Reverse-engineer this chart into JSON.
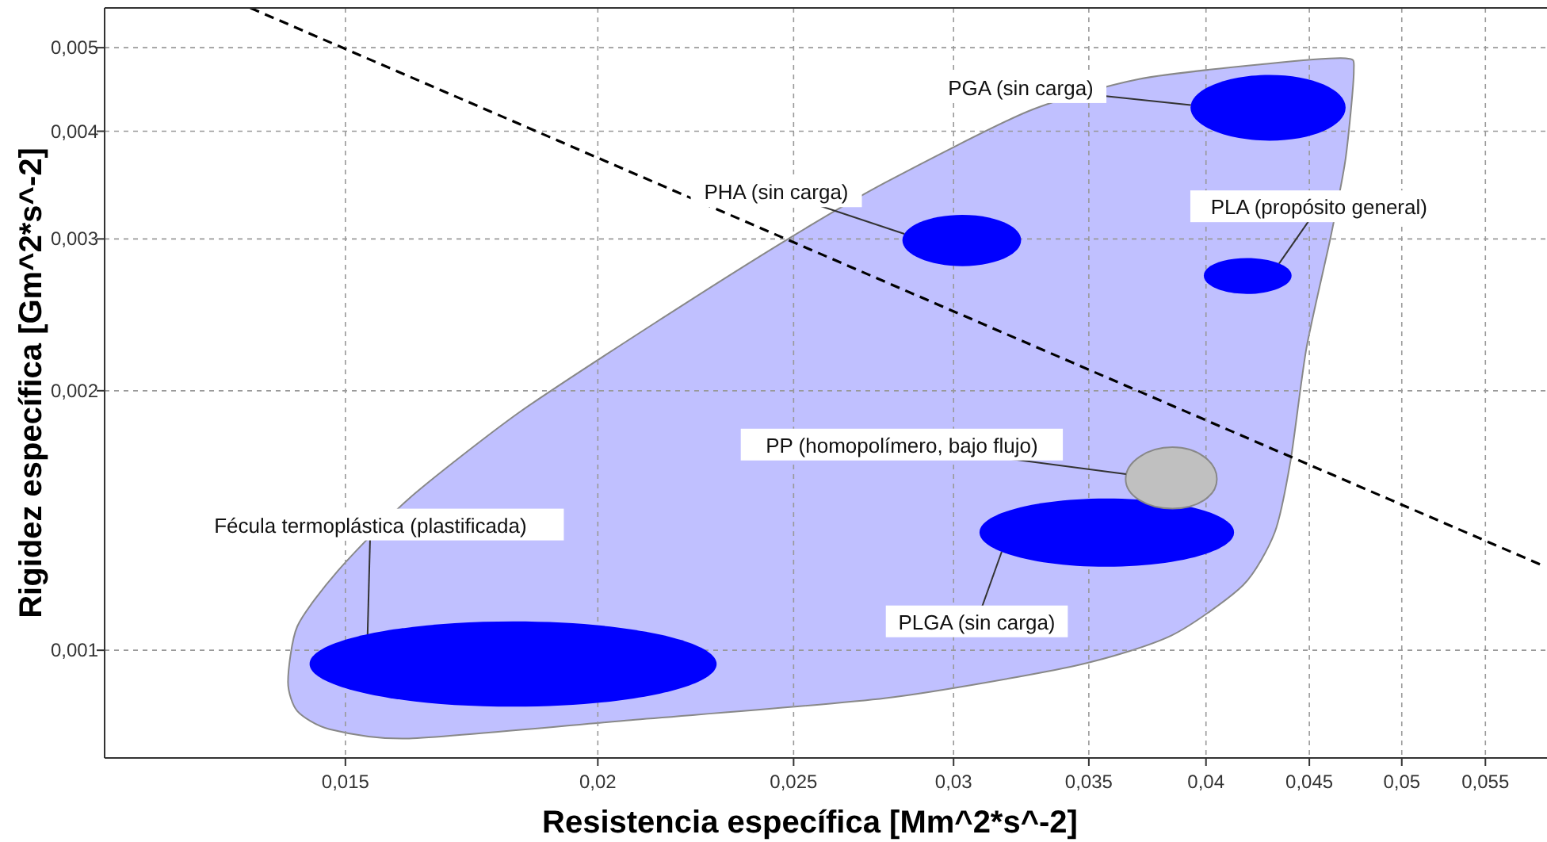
{
  "chart_data": {
    "type": "area",
    "xlabel": "Resistencia específica [Mm^2*s^-2]",
    "ylabel": "Rigidez específica [Gm^2*s^-2]",
    "log": "xy",
    "grid": true,
    "xlim": [
      0.0114,
      0.059
    ],
    "ylim": [
      0.00075,
      0.00556
    ],
    "xticks": [
      {
        "value": 0.015,
        "label": "0,015"
      },
      {
        "value": 0.02,
        "label": "0,02"
      },
      {
        "value": 0.025,
        "label": "0,025"
      },
      {
        "value": 0.03,
        "label": "0,03"
      },
      {
        "value": 0.035,
        "label": "0,035"
      },
      {
        "value": 0.04,
        "label": "0,04"
      },
      {
        "value": 0.045,
        "label": "0,045"
      },
      {
        "value": 0.05,
        "label": "0,05"
      },
      {
        "value": 0.055,
        "label": "0,055"
      }
    ],
    "yticks": [
      {
        "value": 0.001,
        "label": "0,001"
      },
      {
        "value": 0.002,
        "label": "0,002"
      },
      {
        "value": 0.003,
        "label": "0,003"
      },
      {
        "value": 0.004,
        "label": "0,004"
      },
      {
        "value": 0.005,
        "label": "0,005"
      }
    ],
    "series": [
      {
        "color": "#c0c0ff",
        "x": [
          0.01405,
          0.0142,
          0.01487,
          0.01613,
          0.0183,
          0.02154,
          0.0249,
          0.02777,
          0.03267,
          0.0371,
          0.04287,
          0.0469,
          0.04734,
          0.0469,
          0.0461,
          0.04485,
          0.04405,
          0.04326,
          0.04173,
          0.03845,
          0.03449,
          0.02777,
          0.02077,
          0.01613,
          0.01473,
          0.0142
        ],
        "values": [
          0.000919,
          0.001066,
          0.001236,
          0.0015,
          0.00189,
          0.00243,
          0.00301,
          0.00349,
          0.00422,
          0.0046,
          0.00479,
          0.00486,
          0.00469,
          0.00372,
          0.00301,
          0.00224,
          0.00166,
          0.00137,
          0.00119,
          0.00104,
          0.00096,
          0.00088,
          0.00083,
          0.00079,
          0.00081,
          0.00085
        ]
      },
      {
        "type": "line",
        "color": "#000000",
        "line_style": "dashed",
        "x": [
          0.01346,
          0.0589
        ],
        "values": [
          0.00556,
          0.00125
        ]
      },
      {
        "name": "Fécula termoplástica (plastificada)",
        "color": "#0000ff",
        "x": [
          0.0144,
          0.01816,
          0.0229,
          0.01816
        ],
        "values": [
          0.000964,
          0.00108,
          0.000964,
          0.00086
        ]
      },
      {
        "name": "PHA (sin carga)",
        "color": "#0000ff",
        "x": [
          0.0283,
          0.0303,
          0.0324,
          0.0303
        ],
        "values": [
          0.00299,
          0.0032,
          0.00299,
          0.00279
        ]
      },
      {
        "name": "PGA (sin carga)",
        "color": "#0000ff",
        "x": [
          0.0393,
          0.043,
          0.0469,
          0.043
        ],
        "values": [
          0.00426,
          0.00465,
          0.00426,
          0.0039
        ]
      },
      {
        "name": "PLA (propósito general)",
        "color": "#0000ff",
        "x": [
          0.0399,
          0.0419,
          0.0441,
          0.0419
        ],
        "values": [
          0.00272,
          0.00285,
          0.00272,
          0.00259
        ]
      },
      {
        "name": "PLGA (sin carga)",
        "color": "#0000ff",
        "x": [
          0.0309,
          0.0357,
          0.0413,
          0.0357
        ],
        "values": [
          0.00137,
          0.0015,
          0.00137,
          0.00125
        ]
      },
      {
        "name": "PP (homopolímero, bajo flujo)",
        "color": "#c0c0c0",
        "x": [
          0.0365,
          0.0385,
          0.0405,
          0.0385
        ],
        "values": [
          0.00158,
          0.00172,
          0.00158,
          0.00146
        ]
      }
    ]
  }
}
